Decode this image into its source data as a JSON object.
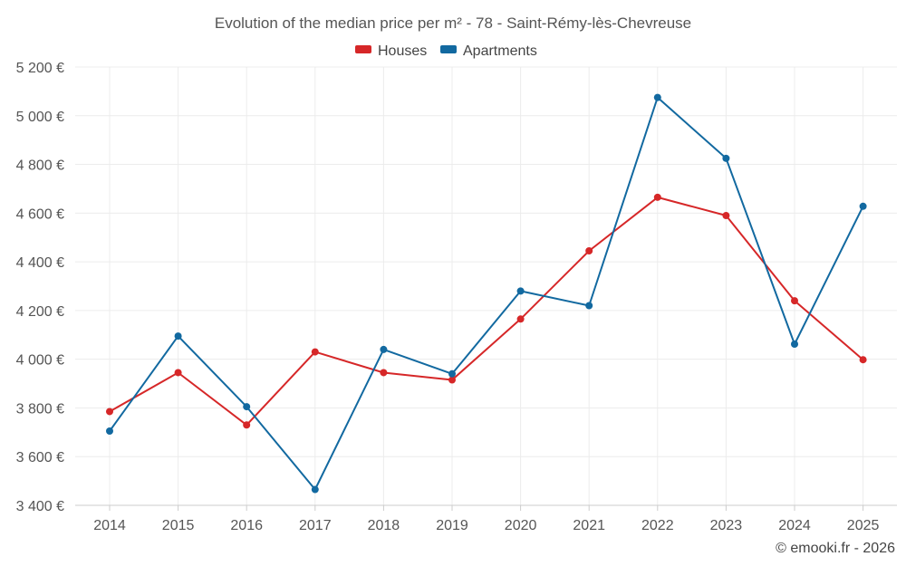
{
  "chart_data": {
    "type": "line",
    "title": "Evolution of the median price per m² - 78 - Saint-Rémy-lès-Chevreuse",
    "categories": [
      "2014",
      "2015",
      "2016",
      "2017",
      "2018",
      "2019",
      "2020",
      "2021",
      "2022",
      "2023",
      "2024",
      "2025"
    ],
    "series": [
      {
        "name": "Houses",
        "color": "#d62728",
        "values": [
          3785,
          3945,
          3730,
          4030,
          3945,
          3915,
          4165,
          4445,
          4665,
          4590,
          4240,
          3998
        ]
      },
      {
        "name": "Apartments",
        "color": "#1269a0",
        "values": [
          3705,
          4095,
          3805,
          3465,
          4040,
          3940,
          4280,
          4220,
          5075,
          4825,
          4062,
          4628
        ]
      }
    ],
    "ylim": [
      3400,
      5200
    ],
    "yticks": [
      3400,
      3600,
      3800,
      4000,
      4200,
      4400,
      4600,
      4800,
      5000,
      5200
    ],
    "ytick_labels": [
      "3 400 €",
      "3 600 €",
      "3 800 €",
      "4 000 €",
      "4 200 €",
      "4 400 €",
      "4 600 €",
      "4 800 €",
      "5 000 €",
      "5 200 €"
    ],
    "xlabel": "",
    "ylabel": "",
    "grid": true,
    "legend_position": "top-center"
  },
  "credit": "© emooki.fr - 2026"
}
